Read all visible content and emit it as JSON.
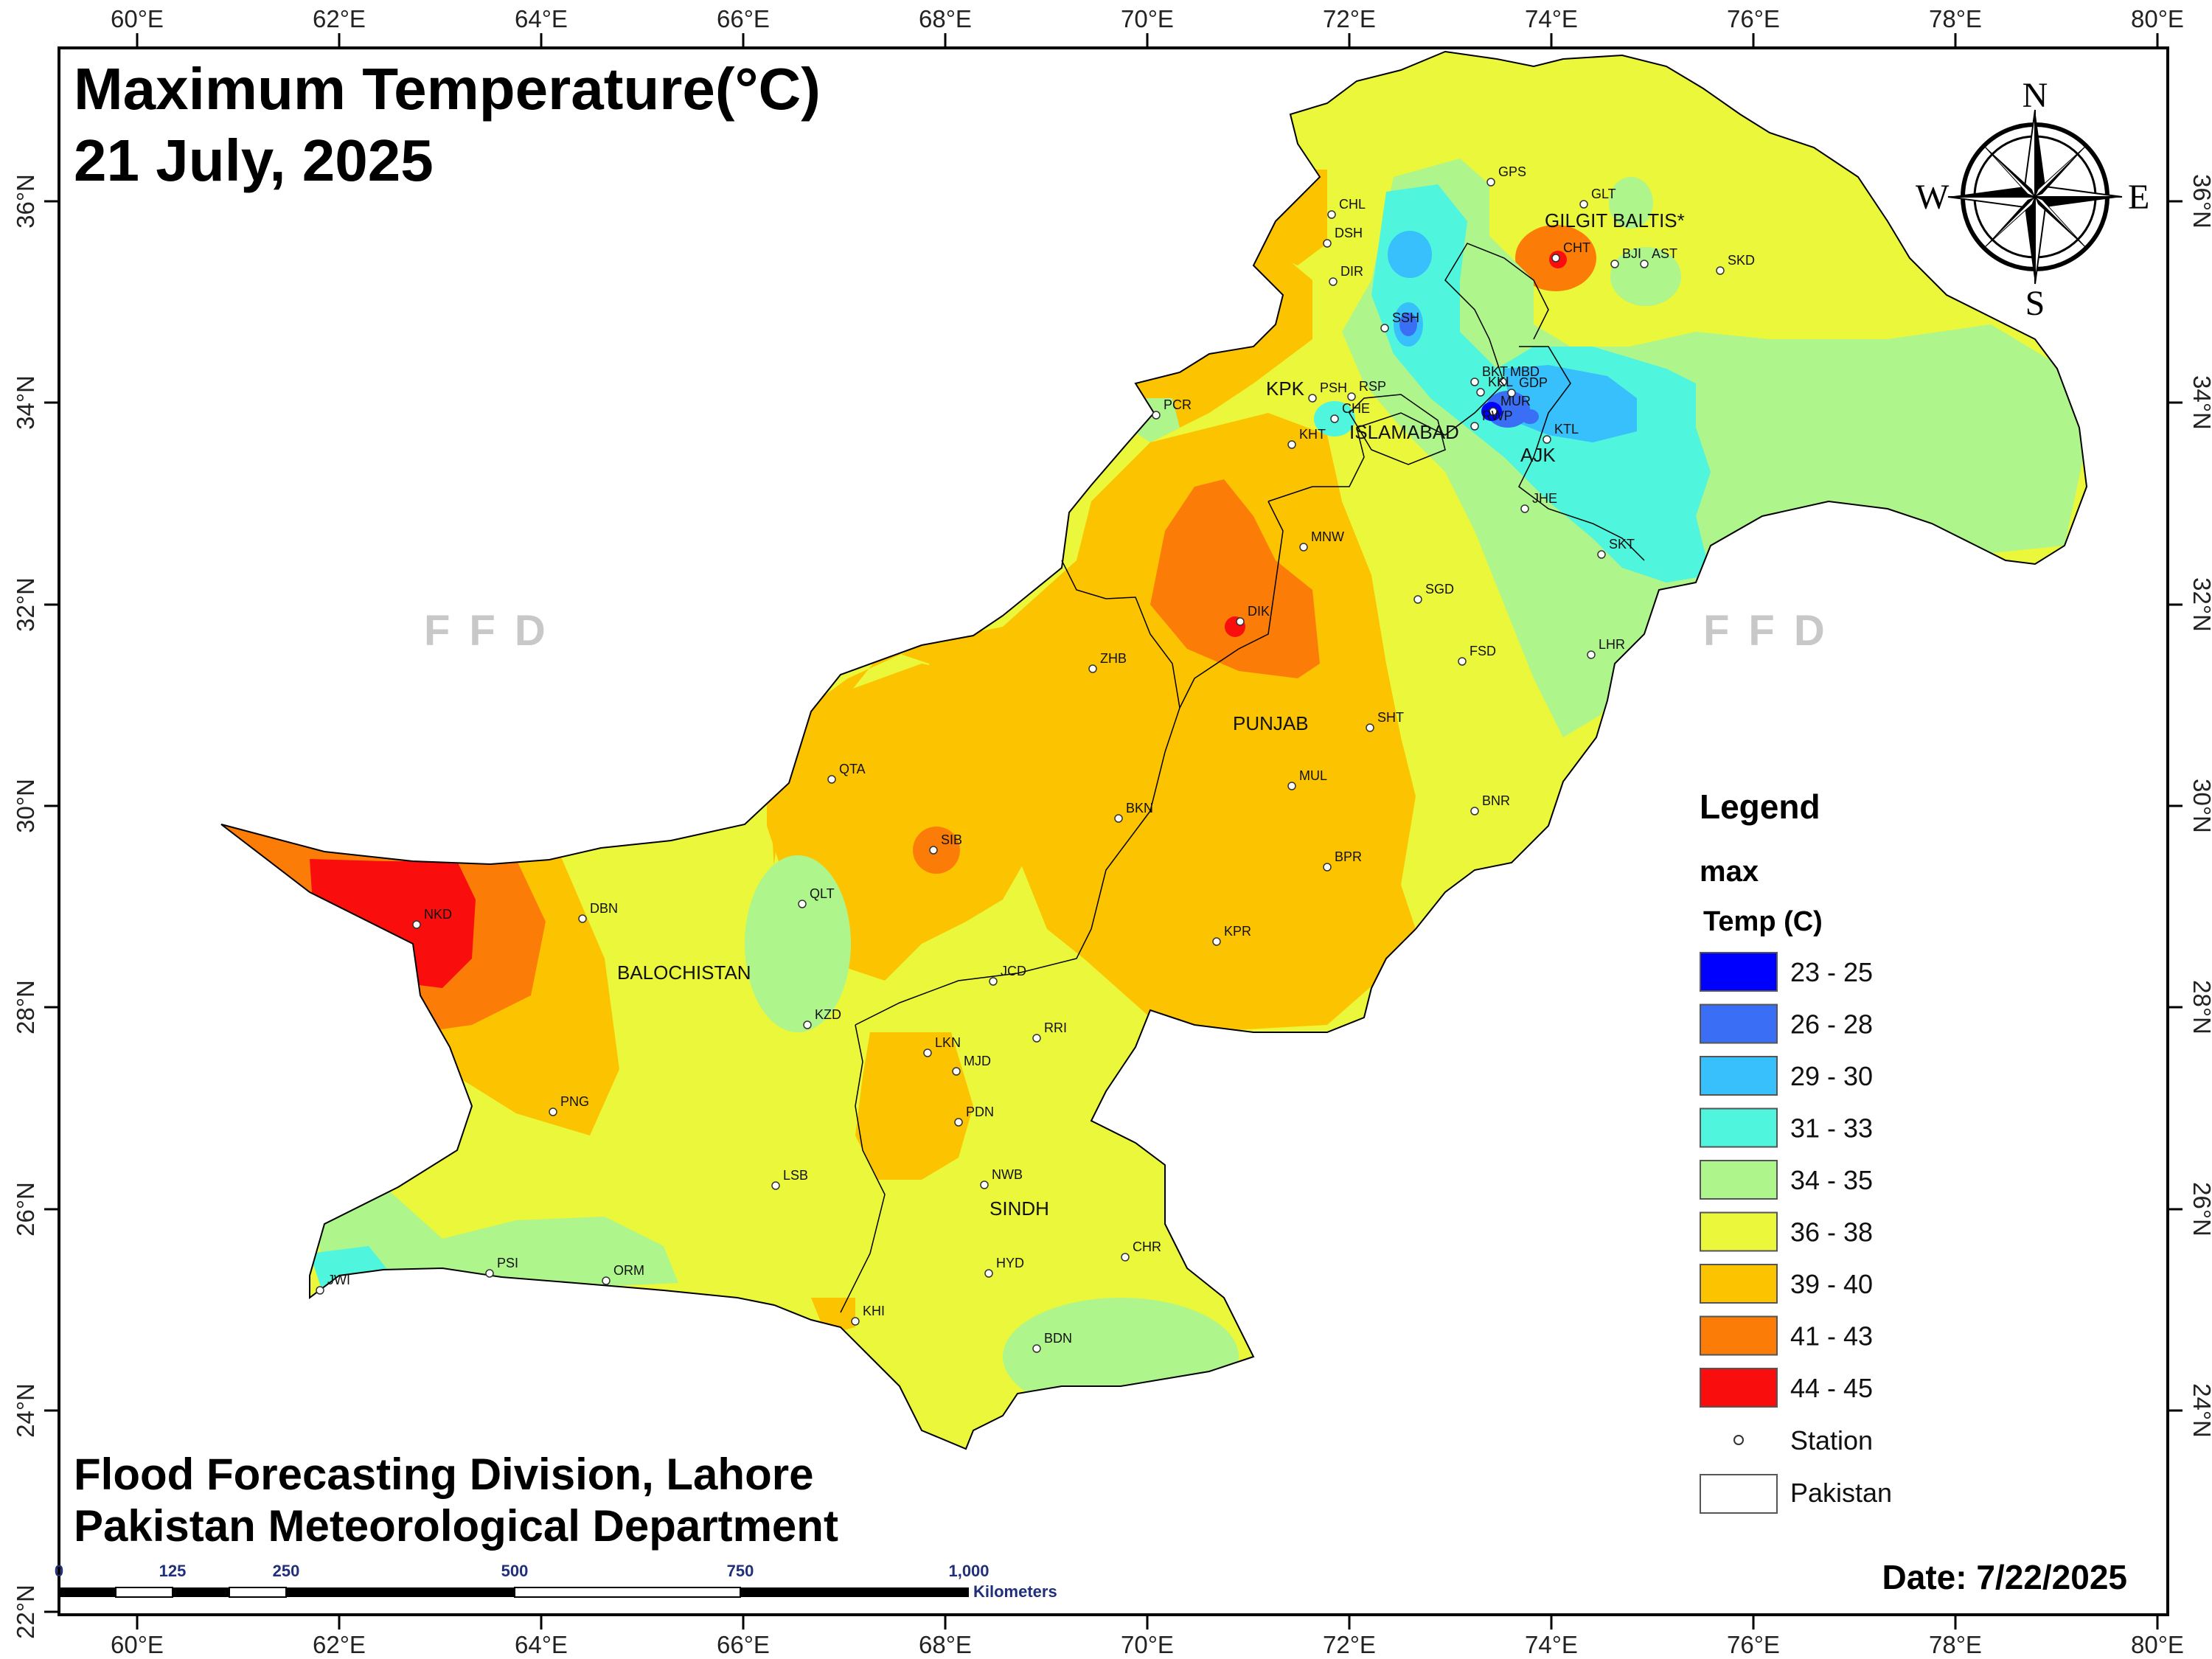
{
  "title": {
    "line1": "Maximum Temperature(°C)",
    "line2": "21 July, 2025"
  },
  "credit": {
    "line1": "Flood Forecasting Division, Lahore",
    "line2": "Pakistan Meteorological Department"
  },
  "date": "Date: 7/22/2025",
  "watermark": "FFD",
  "compass": {
    "n": "N",
    "s": "S",
    "e": "E",
    "w": "W"
  },
  "axes": {
    "lon_labels": [
      "60°E",
      "62°E",
      "64°E",
      "66°E",
      "68°E",
      "70°E",
      "72°E",
      "74°E",
      "76°E",
      "78°E",
      "80°E"
    ],
    "lat_labels": [
      "36°N",
      "34°N",
      "32°N",
      "30°N",
      "28°N",
      "26°N",
      "24°N",
      "22°N"
    ]
  },
  "legend": {
    "title": "Legend",
    "layer": "max",
    "field": "Temp (C)",
    "classes": [
      {
        "label": "23 - 25",
        "color": "#0000ff"
      },
      {
        "label": "26 - 28",
        "color": "#3a6ff5"
      },
      {
        "label": "29 - 30",
        "color": "#37c0fb"
      },
      {
        "label": "31 - 33",
        "color": "#4ff5dc"
      },
      {
        "label": "34 - 35",
        "color": "#aef58c"
      },
      {
        "label": "36 - 38",
        "color": "#eaf73a"
      },
      {
        "label": "39 - 40",
        "color": "#fcc400"
      },
      {
        "label": "41 - 43",
        "color": "#fb7d08"
      },
      {
        "label": "44 - 45",
        "color": "#f90d0d"
      }
    ],
    "station": "Station",
    "boundary": "Pakistan"
  },
  "scale_bar": {
    "ticks": [
      "0",
      "125",
      "250",
      "500",
      "750",
      "1,000"
    ],
    "unit": "Kilometers"
  },
  "regions": [
    "GILGIT BALTIS*",
    "KPK",
    "ISLAMABAD",
    "AJK",
    "PUNJAB",
    "BALOCHISTAN",
    "SINDH"
  ],
  "stations": [
    "GPS",
    "GLT",
    "CHL",
    "DSH",
    "CHT",
    "BJI",
    "AST",
    "SKD",
    "DIR",
    "SSH",
    "BKT",
    "MBD",
    "KKL",
    "GDP",
    "PSH",
    "RSP",
    "MUR",
    "CHE",
    "RWP",
    "KTL",
    "PCR",
    "KHT",
    "JHE",
    "MNW",
    "SKT",
    "SGD",
    "DIK",
    "LHR",
    "FSD",
    "ZHB",
    "SHT",
    "QTA",
    "MUL",
    "BKN",
    "BNR",
    "SIB",
    "BPR",
    "QLT",
    "DBN",
    "NKD",
    "KPR",
    "KZD",
    "JCD",
    "RRI",
    "LKN",
    "MJD",
    "PNG",
    "PDN",
    "NWB",
    "LSB",
    "CHR",
    "HYD",
    "PSI",
    "ORM",
    "JWI",
    "KHI",
    "BDN"
  ]
}
